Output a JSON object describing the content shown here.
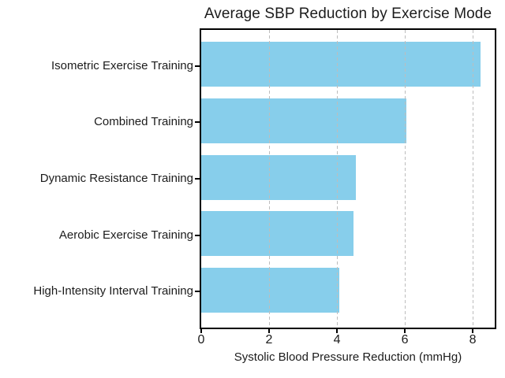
{
  "chart_data": {
    "type": "bar",
    "orientation": "horizontal",
    "title": "Average SBP Reduction by Exercise Mode",
    "xlabel": "Systolic Blood Pressure Reduction (mmHg)",
    "ylabel": "",
    "categories": [
      "Isometric Exercise Training",
      "Combined Training",
      "Dynamic Resistance Training",
      "Aerobic Exercise Training",
      "High-Intensity Interval Training"
    ],
    "values": [
      8.24,
      6.04,
      4.55,
      4.49,
      4.08
    ],
    "xlim": [
      0,
      8.65
    ],
    "xticks": [
      0,
      2,
      4,
      6,
      8
    ],
    "grid": {
      "axis": "x",
      "style": "dashed"
    },
    "legend": "none",
    "bar_color": "#87CEEB",
    "grid_color": "#bdbdbd",
    "axis_color": "#000000",
    "text_color": "#1c1c1c",
    "background_color": "#ffffff"
  }
}
